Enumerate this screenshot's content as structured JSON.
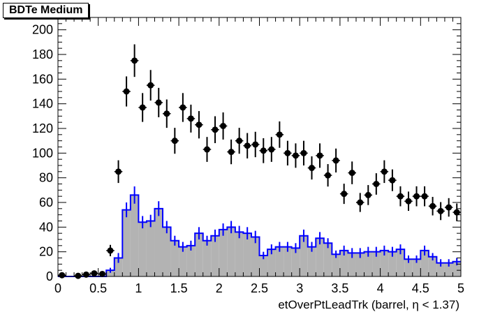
{
  "title": "BDTe Medium",
  "chart_data": {
    "type": "histogram",
    "xlabel": "etOverPtLeadTrk (barrel,   η < 1.37)",
    "ylabel": "",
    "xlim": [
      0,
      5
    ],
    "ylim": [
      0,
      210
    ],
    "x_ticks": [
      0,
      0.5,
      1,
      1.5,
      2,
      2.5,
      3,
      3.5,
      4,
      4.5,
      5
    ],
    "x_tick_labels": [
      "0",
      "0.5",
      "1",
      "1.5",
      "2",
      "2.5",
      "3",
      "3.5",
      "4",
      "4.5",
      "5"
    ],
    "y_ticks": [
      0,
      20,
      40,
      60,
      80,
      100,
      120,
      140,
      160,
      180,
      200
    ],
    "y_tick_labels": [
      "0",
      "20",
      "40",
      "60",
      "80",
      "100",
      "120",
      "140",
      "160",
      "180",
      "200"
    ],
    "grid": false,
    "bin_width": 0.1,
    "series": [
      {
        "kind": "filled-histogram",
        "color": "#0000ff",
        "fill": "#b3b3b3",
        "bin_centers": [
          0.05,
          0.15,
          0.25,
          0.35,
          0.45,
          0.55,
          0.65,
          0.75,
          0.85,
          0.95,
          1.05,
          1.15,
          1.25,
          1.35,
          1.45,
          1.55,
          1.65,
          1.75,
          1.85,
          1.95,
          2.05,
          2.15,
          2.25,
          2.35,
          2.45,
          2.55,
          2.65,
          2.75,
          2.85,
          2.95,
          3.05,
          3.15,
          3.25,
          3.35,
          3.45,
          3.55,
          3.65,
          3.75,
          3.85,
          3.95,
          4.05,
          4.15,
          4.25,
          4.35,
          4.45,
          4.55,
          4.65,
          4.75,
          4.85,
          4.95
        ],
        "values": [
          0,
          0,
          0,
          0,
          0,
          0,
          5,
          15,
          54,
          66,
          44,
          45,
          55,
          40,
          29,
          24,
          25,
          35,
          29,
          33,
          38,
          40,
          36,
          35,
          32,
          17,
          22,
          24,
          24,
          23,
          33,
          24,
          31,
          27,
          18,
          21,
          19,
          19,
          20,
          20,
          21,
          20,
          22,
          14,
          14,
          21,
          16,
          11,
          11,
          12
        ],
        "errors": [
          0,
          0,
          0,
          0,
          0,
          0,
          2,
          4,
          6,
          7,
          5,
          5,
          6,
          5,
          4,
          4,
          4,
          5,
          4,
          5,
          5,
          5,
          5,
          5,
          5,
          3,
          4,
          4,
          4,
          4,
          5,
          4,
          5,
          4,
          3,
          4,
          4,
          4,
          4,
          4,
          4,
          4,
          4,
          3,
          3,
          4,
          3,
          3,
          3,
          3
        ]
      },
      {
        "kind": "points",
        "color": "#000000",
        "x": [
          0.05,
          0.25,
          0.35,
          0.45,
          0.55,
          0.65,
          0.75,
          0.85,
          0.95,
          1.05,
          1.15,
          1.25,
          1.35,
          1.45,
          1.55,
          1.65,
          1.75,
          1.85,
          1.95,
          2.05,
          2.15,
          2.25,
          2.35,
          2.45,
          2.55,
          2.65,
          2.75,
          2.85,
          2.95,
          3.05,
          3.15,
          3.25,
          3.35,
          3.45,
          3.55,
          3.65,
          3.75,
          3.85,
          3.95,
          4.05,
          4.15,
          4.25,
          4.35,
          4.45,
          4.55,
          4.65,
          4.75,
          4.85,
          4.95
        ],
        "y": [
          1,
          0.5,
          1.5,
          2.5,
          2,
          21,
          85,
          150,
          175,
          137,
          155,
          141,
          132,
          110,
          137,
          128,
          123,
          103,
          119,
          122,
          101,
          110,
          106,
          107,
          102,
          103,
          115,
          100,
          98,
          100,
          88,
          98,
          82,
          94,
          67,
          84,
          60,
          66,
          75,
          85,
          78,
          65,
          61,
          65,
          65,
          57,
          53,
          56,
          52
        ],
        "errors": [
          1,
          0.7,
          1.2,
          1.6,
          1.4,
          4.6,
          9.2,
          12.2,
          13.2,
          11.7,
          12.4,
          11.9,
          11.5,
          10.5,
          11.7,
          11.3,
          11.1,
          10.1,
          10.9,
          11,
          10,
          10.5,
          10.3,
          10.3,
          10.1,
          10.1,
          10.7,
          10,
          9.9,
          10,
          9.4,
          9.9,
          9.1,
          9.7,
          8.2,
          9.2,
          7.7,
          8.1,
          8.7,
          9.2,
          8.8,
          8.1,
          7.8,
          8.1,
          8.1,
          7.5,
          7.3,
          7.5,
          7.2
        ]
      }
    ]
  }
}
